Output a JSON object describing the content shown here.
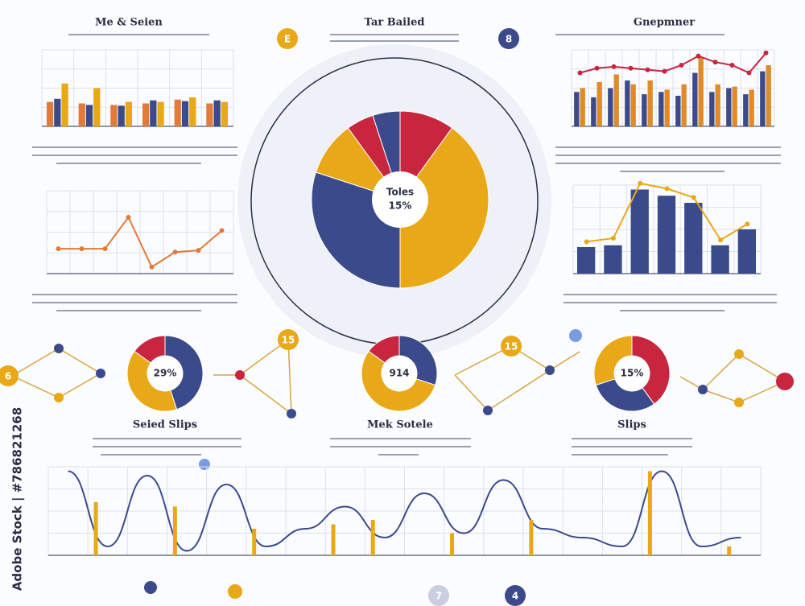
{
  "chart_data": [
    {
      "type": "bar",
      "title": "Me & Seien",
      "categories": [
        null,
        null,
        null,
        null,
        null,
        null
      ],
      "ylim": [
        0,
        100
      ],
      "series": [
        {
          "name": null,
          "color": "#e07b39",
          "values": [
            32,
            30,
            28,
            30,
            35,
            30
          ]
        },
        {
          "name": null,
          "color": "#3b4a8a",
          "values": [
            36,
            28,
            27,
            34,
            33,
            34
          ]
        },
        {
          "name": null,
          "color": "#e8a817",
          "values": [
            56,
            50,
            32,
            32,
            38,
            32
          ]
        }
      ]
    },
    {
      "type": "line",
      "categories": [
        null,
        null,
        null,
        null,
        null,
        null,
        null,
        null
      ],
      "ylim": [
        0,
        100
      ],
      "series": [
        {
          "name": null,
          "color": "#e07b39",
          "values": [
            30,
            30,
            30,
            68,
            8,
            26,
            28,
            52
          ]
        }
      ]
    },
    {
      "type": "pie",
      "title": "Tar Bailed",
      "center_label": "Toles",
      "center_value": "15%",
      "values": [
        10,
        40,
        30,
        10,
        5,
        5
      ],
      "colors": [
        "#c8253f",
        "#e8a817",
        "#3b4a8a",
        "#e8a817",
        "#c8253f",
        "#3b4a8a"
      ]
    },
    {
      "type": "bar",
      "title": "Gnepmner",
      "categories": [
        null,
        null,
        null,
        null,
        null,
        null,
        null,
        null,
        null,
        null,
        null,
        null
      ],
      "ylim": [
        0,
        100
      ],
      "series": [
        {
          "name": null,
          "color": "#3b4a8a",
          "values": [
            45,
            38,
            50,
            60,
            42,
            45,
            40,
            70,
            45,
            50,
            42,
            72
          ]
        },
        {
          "name": null,
          "color": "#e08a2a",
          "values": [
            50,
            58,
            68,
            55,
            60,
            48,
            55,
            90,
            55,
            52,
            48,
            80
          ]
        },
        {
          "name": null,
          "color": "#c8253f",
          "type": "line",
          "values": [
            70,
            76,
            78,
            76,
            74,
            72,
            80,
            92,
            84,
            80,
            70,
            96
          ]
        }
      ]
    },
    {
      "type": "bar",
      "categories": [
        null,
        null,
        null,
        null,
        null,
        null,
        null
      ],
      "ylim": [
        0,
        100
      ],
      "series": [
        {
          "name": null,
          "color": "#3b4a8a",
          "values": [
            30,
            32,
            95,
            88,
            80,
            32,
            50
          ]
        },
        {
          "name": null,
          "color": "#e8a817",
          "type": "line",
          "values": [
            36,
            40,
            102,
            96,
            86,
            38,
            56
          ]
        }
      ]
    },
    {
      "type": "donut",
      "title": "Seied Slips",
      "center_value": "29%",
      "values": [
        45,
        40,
        15
      ],
      "colors": [
        "#3b4a8a",
        "#e8a817",
        "#c8253f"
      ]
    },
    {
      "type": "donut",
      "title": "Mek Sotele",
      "center_value": "914",
      "values": [
        30,
        55,
        15
      ],
      "colors": [
        "#3b4a8a",
        "#e8a817",
        "#c8253f"
      ]
    },
    {
      "type": "donut",
      "title": "Slips",
      "center_value": "15%",
      "values": [
        40,
        30,
        30
      ],
      "colors": [
        "#c8253f",
        "#3b4a8a",
        "#e8a817"
      ]
    },
    {
      "type": "line",
      "categories": [
        null,
        null,
        null,
        null,
        null,
        null,
        null,
        null,
        null,
        null,
        null,
        null,
        null,
        null,
        null,
        null,
        null,
        null
      ],
      "ylim": [
        0,
        100
      ],
      "series": [
        {
          "name": null,
          "color": "#3b4a8a",
          "values": [
            95,
            10,
            90,
            5,
            80,
            10,
            30,
            55,
            20,
            70,
            25,
            85,
            30,
            20,
            10,
            95,
            10,
            20
          ]
        },
        {
          "name": null,
          "color": "#e8a817",
          "type": "bar",
          "values": [
            0,
            60,
            0,
            55,
            0,
            30,
            0,
            35,
            40,
            0,
            25,
            0,
            40,
            0,
            0,
            95,
            0,
            10
          ]
        }
      ]
    }
  ],
  "badges": [
    "E",
    "8",
    "15",
    "15",
    "6",
    "4",
    "7"
  ],
  "watermark": "Adobe Stock | #786821268"
}
